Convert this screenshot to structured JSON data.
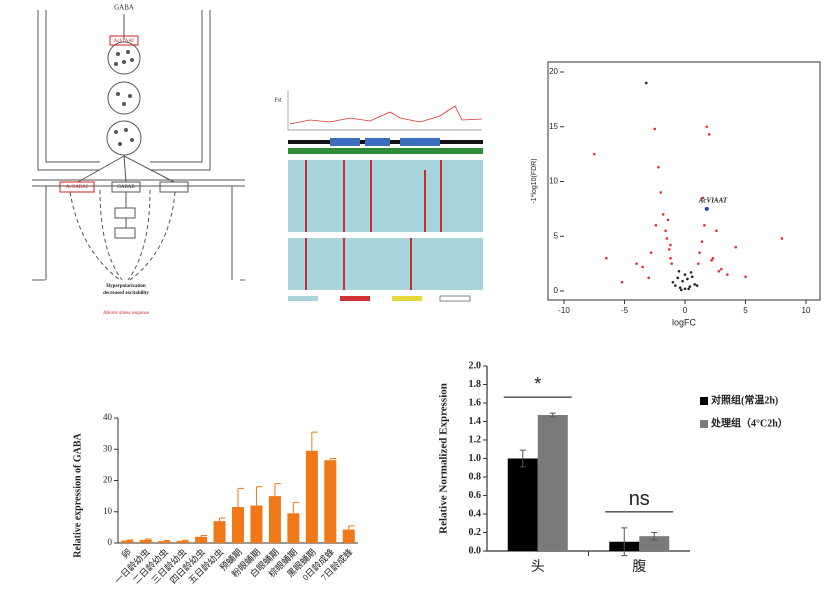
{
  "diagram": {
    "labels": [
      "GABA",
      "AcVIAAT",
      "AcGABA2",
      "GABAB",
      "Hyperpolarization",
      "decreased excitability",
      "Abiotic stress response"
    ]
  },
  "alignment": {
    "label": "Fst"
  },
  "chart_data": [
    {
      "type": "scatter",
      "xlabel": "logFC",
      "ylabel": "-1*log10(FDR)",
      "annotation": "AcVIAAT",
      "xlim": [
        -10,
        10
      ],
      "xticks": [
        -10,
        -5,
        0,
        5,
        10
      ],
      "ylim": [
        0,
        20
      ],
      "yticks": [
        0,
        5,
        10,
        15,
        20
      ],
      "series": [
        {
          "color": "#e03030",
          "x": [
            -7.5,
            -5.2,
            -4,
            -3,
            -2.5,
            -2.2,
            -2,
            -1.8,
            -1.6,
            -1.5,
            -1.3,
            -1.2,
            -1.1,
            -2.8,
            -3.5,
            -2.4,
            1.1,
            1.2,
            1.4,
            1.6,
            1.8,
            2,
            2.3,
            2.6,
            3,
            3.5,
            4.2,
            5,
            8,
            1.5,
            2.2,
            -1.4,
            -1.2,
            2.8,
            -6.5
          ],
          "values": [
            12.5,
            0.8,
            2.5,
            1.2,
            14.8,
            11.3,
            9,
            7,
            5.5,
            4.8,
            3.8,
            3,
            2.5,
            3.5,
            2.2,
            6,
            2.5,
            3.5,
            4.5,
            6,
            15,
            14.3,
            3,
            5.5,
            2,
            1.5,
            4,
            1.3,
            4.8,
            8.5,
            2.8,
            6.5,
            4.2,
            1.8,
            3
          ]
        },
        {
          "color": "#222222",
          "x": [
            -1,
            -0.8,
            -0.6,
            -0.4,
            -0.2,
            0,
            0.2,
            0.4,
            0.6,
            0.8,
            1,
            -0.5,
            0.5,
            0,
            -0.3,
            0.3,
            -3.2
          ],
          "values": [
            0.8,
            0.5,
            1.2,
            0.3,
            0.9,
            0.2,
            1.1,
            0.4,
            1.3,
            0.6,
            0.5,
            1.8,
            1.7,
            1.5,
            0.1,
            0.2,
            19
          ]
        },
        {
          "color": "#2040c0",
          "x": [
            1.8
          ],
          "values": [
            7.5
          ]
        }
      ]
    },
    {
      "type": "bar",
      "ylabel": "Relative expression of GABA",
      "color": "#f07818",
      "categories": [
        "卵",
        "一日龄幼虫",
        "二日龄幼虫",
        "三日龄幼虫",
        "四日龄幼虫",
        "五日龄幼虫",
        "预蛹期",
        "粉眼蛹期",
        "白眼蛹期",
        "棕眼蛹期",
        "黑眼蛹期",
        "0日龄成蜂",
        "7日龄成蜂"
      ],
      "values": [
        0.8,
        1.0,
        0.6,
        0.7,
        2.0,
        7,
        11.5,
        12,
        15,
        9.5,
        29.5,
        26.5,
        4.3
      ],
      "errors": [
        0.2,
        0.3,
        0.2,
        0.2,
        0.4,
        1.0,
        6,
        6,
        4,
        3.5,
        6,
        0.5,
        1.2
      ],
      "ylim": [
        0,
        40
      ],
      "yticks": [
        0,
        10,
        20,
        30,
        40
      ]
    },
    {
      "type": "grouped_bar",
      "ylabel": "Relative Normalized Expression",
      "categories": [
        "头",
        "腹"
      ],
      "series": [
        {
          "name": "对照组(常温2h)",
          "color": "#000000",
          "values": [
            1.0,
            0.1
          ],
          "errors": [
            0.09,
            0.15
          ]
        },
        {
          "name": "处理组（4°C2h）",
          "color": "#7a7a7a",
          "values": [
            1.47,
            0.16
          ],
          "errors": [
            0.02,
            0.04
          ]
        }
      ],
      "annotations": [
        "*",
        "ns"
      ],
      "ylim": [
        0,
        2.0
      ],
      "yticks": [
        {
          "value": 0,
          "label": "0.0"
        },
        {
          "value": 0.2,
          "label": "0.2"
        },
        {
          "value": 0.4,
          "label": "0.4"
        },
        {
          "value": 0.6,
          "label": "0.6"
        },
        {
          "value": 0.8,
          "label": "0.8"
        },
        {
          "value": 1.0,
          "label": "1.0"
        },
        {
          "value": 1.2,
          "label": "1.2"
        },
        {
          "value": 1.4,
          "label": "1.4"
        },
        {
          "value": 1.6,
          "label": "1.6"
        },
        {
          "value": 1.8,
          "label": "1.8"
        },
        {
          "value": 2.0,
          "label": "2.0"
        }
      ],
      "legend": "right"
    }
  ]
}
